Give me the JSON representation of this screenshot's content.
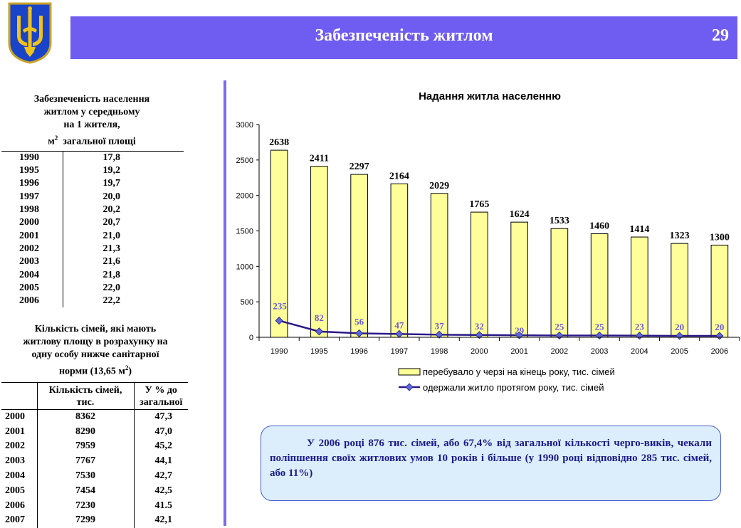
{
  "header": {
    "title": "Забезпеченість житлом",
    "page_number": "29"
  },
  "table1": {
    "title_line1": "Забезпеченість населення",
    "title_line2": "житлом у середньому",
    "title_line3": "на 1 жителя,",
    "title_unit": "м",
    "title_unit_sup": "2",
    "title_unit_rest": "загальної площі",
    "rows": [
      {
        "year": "1990",
        "value": "17,8"
      },
      {
        "year": "1995",
        "value": "19,2"
      },
      {
        "year": "1996",
        "value": "19,7"
      },
      {
        "year": "1997",
        "value": "20,0"
      },
      {
        "year": "1998",
        "value": "20,2"
      },
      {
        "year": "2000",
        "value": "20,7"
      },
      {
        "year": "2001",
        "value": "21,0"
      },
      {
        "year": "2002",
        "value": "21,3"
      },
      {
        "year": "2003",
        "value": "21,6"
      },
      {
        "year": "2004",
        "value": "21,8"
      },
      {
        "year": "2005",
        "value": "22,0"
      },
      {
        "year": "2006",
        "value": "22,2"
      }
    ]
  },
  "table2": {
    "title_line1": "Кількість сімей, які мають",
    "title_line2": "житлову площу в розрахунку на",
    "title_line3": "одну особу нижче санітарної",
    "title_line4": "норми (13,65 м",
    "title_sup": "2",
    "title_end": ")",
    "col2_header_line1": "Кількість сімей,",
    "col2_header_line2": "тис.",
    "col3_header_line1": "У % до",
    "col3_header_line2": "загальної",
    "rows": [
      {
        "year": "2000",
        "families": "8362",
        "percent": "47,3"
      },
      {
        "year": "2001",
        "families": "8290",
        "percent": "47,0"
      },
      {
        "year": "2002",
        "families": "7959",
        "percent": "45,2"
      },
      {
        "year": "2003",
        "families": "7767",
        "percent": "44,1"
      },
      {
        "year": "2004",
        "families": "7530",
        "percent": "42,7"
      },
      {
        "year": "2005",
        "families": "7454",
        "percent": "42,5"
      },
      {
        "year": "2006",
        "families": "7230",
        "percent": "41.5"
      },
      {
        "year": "2007",
        "families": "7299",
        "percent": "42,1"
      }
    ]
  },
  "chart_data": {
    "type": "bar",
    "title": "Надання житла населенню",
    "categories": [
      "1990",
      "1995",
      "1996",
      "1997",
      "1998",
      "2000",
      "2001",
      "2002",
      "2003",
      "2004",
      "2005",
      "2006"
    ],
    "ylim": [
      0,
      3000
    ],
    "yticks": [
      0,
      500,
      1000,
      1500,
      2000,
      2500,
      3000
    ],
    "grid": false,
    "legend_position": "bottom",
    "series": [
      {
        "name": "перебувало у черзі на кінець року, тис. сімей",
        "type": "bar",
        "color": "#ffff99",
        "values": [
          2638,
          2411,
          2297,
          2164,
          2029,
          1765,
          1624,
          1533,
          1460,
          1414,
          1323,
          1300
        ]
      },
      {
        "name": "одержали житло протягом року, тис. сімей",
        "type": "line",
        "color": "#2a1a8a",
        "marker_color": "#5a6ad8",
        "values": [
          235,
          82,
          56,
          47,
          37,
          32,
          29,
          25,
          25,
          23,
          20,
          20
        ]
      }
    ]
  },
  "callout": {
    "text": "У 2006 році 876 тис. сімей, або 67,4% від загальної кількості черго-виків, чекали поліпшення своїх житлових умов 10 років і більше (у 1990 році відповідно 285  тис. сімей, або 11%)"
  }
}
